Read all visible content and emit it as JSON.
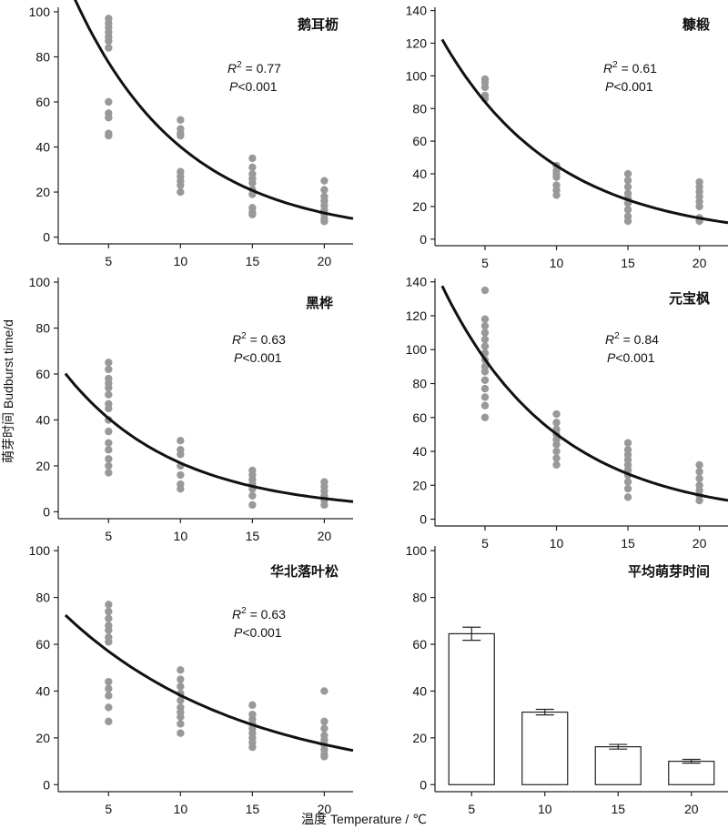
{
  "ylabel": "萌芽时间 Budburst time/d",
  "xlabel": "温度 Temperature / ℃",
  "colors": {
    "points": "#999999",
    "curve": "#111111",
    "axis": "#222222",
    "bar_fill": "#ffffff"
  },
  "chart_data": [
    {
      "type": "scatter",
      "title": "鹅耳枥",
      "stats": {
        "r2_label": "R",
        "r2_sup": "2",
        "r2_value": " = 0.77",
        "p_label": "P",
        "p_value": "<0.001"
      },
      "xlim": [
        1.5,
        22
      ],
      "ylim": [
        -3,
        102
      ],
      "xticks": [
        "5",
        "10",
        "15",
        "20"
      ],
      "yticks": [
        "0",
        "20",
        "40",
        "60",
        "80",
        "100"
      ],
      "points": {
        "5": [
          97,
          95,
          93,
          91,
          89,
          87,
          84,
          60,
          55,
          53,
          46,
          45
        ],
        "10": [
          52,
          48,
          46,
          45,
          29,
          27,
          25,
          23,
          20
        ],
        "15": [
          35,
          31,
          28,
          26,
          24,
          21,
          19,
          13,
          11,
          10
        ],
        "20": [
          25,
          21,
          18,
          16,
          14,
          12,
          10,
          8,
          7
        ]
      },
      "fit": {
        "a": 150,
        "b": -0.132
      }
    },
    {
      "type": "scatter",
      "title": "糠椴",
      "stats": {
        "r2_label": "R",
        "r2_sup": "2",
        "r2_value": " = 0.61",
        "p_label": "P",
        "p_value": "<0.001"
      },
      "xlim": [
        1.5,
        22
      ],
      "ylim": [
        -4,
        142
      ],
      "xticks": [
        "5",
        "10",
        "15",
        "20"
      ],
      "yticks": [
        "0",
        "20",
        "40",
        "60",
        "80",
        "100",
        "120",
        "140"
      ],
      "points": {
        "5": [
          98,
          96,
          93,
          88,
          86
        ],
        "10": [
          45,
          42,
          40,
          38,
          33,
          30,
          27
        ],
        "15": [
          40,
          36,
          32,
          28,
          25,
          22,
          18,
          14,
          11
        ],
        "20": [
          35,
          32,
          29,
          26,
          23,
          20,
          13,
          11
        ]
      },
      "fit": {
        "a": 157,
        "b": -0.125
      }
    },
    {
      "type": "scatter",
      "title": "黑桦",
      "stats": {
        "r2_label": "R",
        "r2_sup": "2",
        "r2_value": " = 0.63",
        "p_label": "P",
        "p_value": "<0.001"
      },
      "xlim": [
        1.5,
        22
      ],
      "ylim": [
        -3,
        102
      ],
      "xticks": [
        "5",
        "10",
        "15",
        "20"
      ],
      "yticks": [
        "0",
        "20",
        "40",
        "60",
        "80",
        "100"
      ],
      "points": {
        "5": [
          65,
          62,
          58,
          56,
          54,
          51,
          47,
          45,
          40,
          35,
          30,
          27,
          23,
          20,
          17
        ],
        "10": [
          31,
          27,
          25,
          20,
          16,
          12,
          10
        ],
        "15": [
          18,
          16,
          14,
          12,
          10,
          7,
          3
        ],
        "20": [
          13,
          11,
          9,
          7,
          5,
          3
        ]
      },
      "fit": {
        "a": 78,
        "b": -0.13
      }
    },
    {
      "type": "scatter",
      "title": "元宝枫",
      "stats": {
        "r2_label": "R",
        "r2_sup": "2",
        "r2_value": " = 0.84",
        "p_label": "P",
        "p_value": "<0.001"
      },
      "xlim": [
        1.5,
        22
      ],
      "ylim": [
        -4,
        142
      ],
      "xticks": [
        "5",
        "10",
        "15",
        "20"
      ],
      "yticks": [
        "0",
        "20",
        "40",
        "60",
        "80",
        "100",
        "120",
        "140"
      ],
      "points": {
        "5": [
          135,
          118,
          114,
          110,
          106,
          102,
          98,
          94,
          90,
          87,
          82,
          77,
          72,
          67,
          60
        ],
        "10": [
          62,
          57,
          53,
          50,
          47,
          44,
          40,
          36,
          32
        ],
        "15": [
          45,
          41,
          38,
          35,
          32,
          29,
          26,
          22,
          18,
          13
        ],
        "20": [
          32,
          28,
          24,
          20,
          17,
          14,
          11
        ]
      },
      "fit": {
        "a": 177,
        "b": -0.126
      }
    },
    {
      "type": "scatter",
      "title": "华北落叶松",
      "stats": {
        "r2_label": "R",
        "r2_sup": "2",
        "r2_value": " = 0.63",
        "p_label": "P",
        "p_value": "<0.001"
      },
      "xlim": [
        1.5,
        22
      ],
      "ylim": [
        -3,
        102
      ],
      "xticks": [
        "5",
        "10",
        "15",
        "20"
      ],
      "yticks": [
        "0",
        "20",
        "40",
        "60",
        "80",
        "100"
      ],
      "points": {
        "5": [
          77,
          74,
          71,
          68,
          66,
          63,
          61,
          44,
          41,
          38,
          33,
          27
        ],
        "10": [
          49,
          45,
          42,
          39,
          36,
          33,
          31,
          29,
          26,
          22
        ],
        "15": [
          34,
          30,
          28,
          26,
          24,
          22,
          20,
          18,
          16
        ],
        "20": [
          40,
          27,
          24,
          21,
          19,
          17,
          15,
          13,
          12
        ]
      },
      "fit": {
        "a": 85,
        "b": -0.08
      }
    },
    {
      "type": "bar",
      "title": "平均萌芽时间",
      "categories": [
        "5",
        "10",
        "15",
        "20"
      ],
      "values": [
        64.5,
        31,
        16.2,
        10
      ],
      "errors": [
        2.8,
        1.2,
        1.0,
        0.8
      ],
      "ylim": [
        -3,
        102
      ],
      "yticks": [
        "0",
        "20",
        "40",
        "60",
        "80",
        "100"
      ]
    }
  ]
}
